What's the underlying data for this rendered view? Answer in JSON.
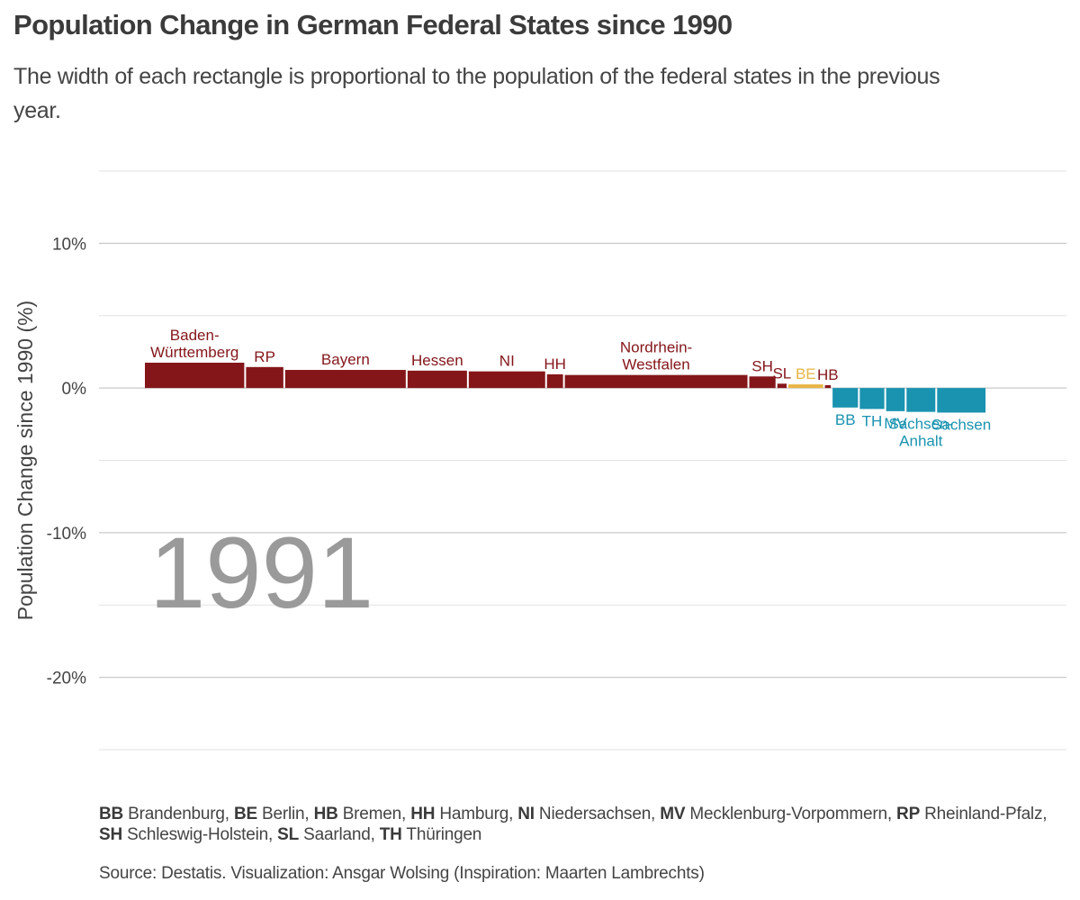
{
  "title": "Population Change in German Federal States since 1990",
  "subtitle": "The width of each rectangle is proportional to the population of the federal states in the previous year.",
  "caption": {
    "abbreviations": [
      {
        "abbr": "BB",
        "name": "Brandenburg"
      },
      {
        "abbr": "BE",
        "name": "Berlin"
      },
      {
        "abbr": "HB",
        "name": "Bremen"
      },
      {
        "abbr": "HH",
        "name": "Hamburg"
      },
      {
        "abbr": "NI",
        "name": "Niedersachsen"
      },
      {
        "abbr": "MV",
        "name": "Mecklenburg-Vorpommern"
      },
      {
        "abbr": "RP",
        "name": "Rheinland-Pfalz"
      },
      {
        "abbr": "SH",
        "name": "Schleswig-Holstein"
      },
      {
        "abbr": "SL",
        "name": "Saarland"
      },
      {
        "abbr": "TH",
        "name": "Thüringen"
      }
    ],
    "source": "Source: Destatis. Visualization: Ansgar Wolsing (Inspiration: Maarten Lambrechts)"
  },
  "chart_data": {
    "type": "bar",
    "year_label": "1991",
    "ylabel": "Population Change since 1990 (%)",
    "ylim": [
      -25,
      15
    ],
    "yticks": [
      10,
      0,
      -10,
      -20
    ],
    "ytick_labels": [
      "10%",
      "0%",
      "-10%",
      "-20%"
    ],
    "grid": true,
    "colors": {
      "west": "#84161a",
      "berlin": "#e8b544",
      "east": "#1a93b0"
    },
    "bars": [
      {
        "label": "Baden-\nWürttemberg",
        "region": "west",
        "population_share": 11.9,
        "value": 1.75
      },
      {
        "label": "RP",
        "region": "west",
        "population_share": 4.6,
        "value": 1.45
      },
      {
        "label": "Bayern",
        "region": "west",
        "population_share": 14.4,
        "value": 1.25
      },
      {
        "label": "Hessen",
        "region": "west",
        "population_share": 7.2,
        "value": 1.2
      },
      {
        "label": "NI",
        "region": "west",
        "population_share": 9.2,
        "value": 1.15
      },
      {
        "label": "HH",
        "region": "west",
        "population_share": 2.1,
        "value": 0.95
      },
      {
        "label": "Nordrhein-\nWestfalen",
        "region": "west",
        "population_share": 21.7,
        "value": 0.9
      },
      {
        "label": "SH",
        "region": "west",
        "population_share": 3.3,
        "value": 0.8
      },
      {
        "label": "SL",
        "region": "west",
        "population_share": 1.3,
        "value": 0.3
      },
      {
        "label": "BE",
        "region": "berlin",
        "population_share": 4.3,
        "value": 0.25
      },
      {
        "label": "HB",
        "region": "west",
        "population_share": 0.9,
        "value": 0.2
      },
      {
        "label": "BB",
        "region": "east",
        "population_share": 3.2,
        "value": -1.35
      },
      {
        "label": "TH",
        "region": "east",
        "population_share": 3.1,
        "value": -1.45
      },
      {
        "label": "MV",
        "region": "east",
        "population_share": 2.4,
        "value": -1.6
      },
      {
        "label": "Sachsen-\nAnhalt",
        "region": "east",
        "population_share": 3.6,
        "value": -1.65
      },
      {
        "label": "Sachsen",
        "region": "east",
        "population_share": 5.9,
        "value": -1.7
      }
    ]
  }
}
